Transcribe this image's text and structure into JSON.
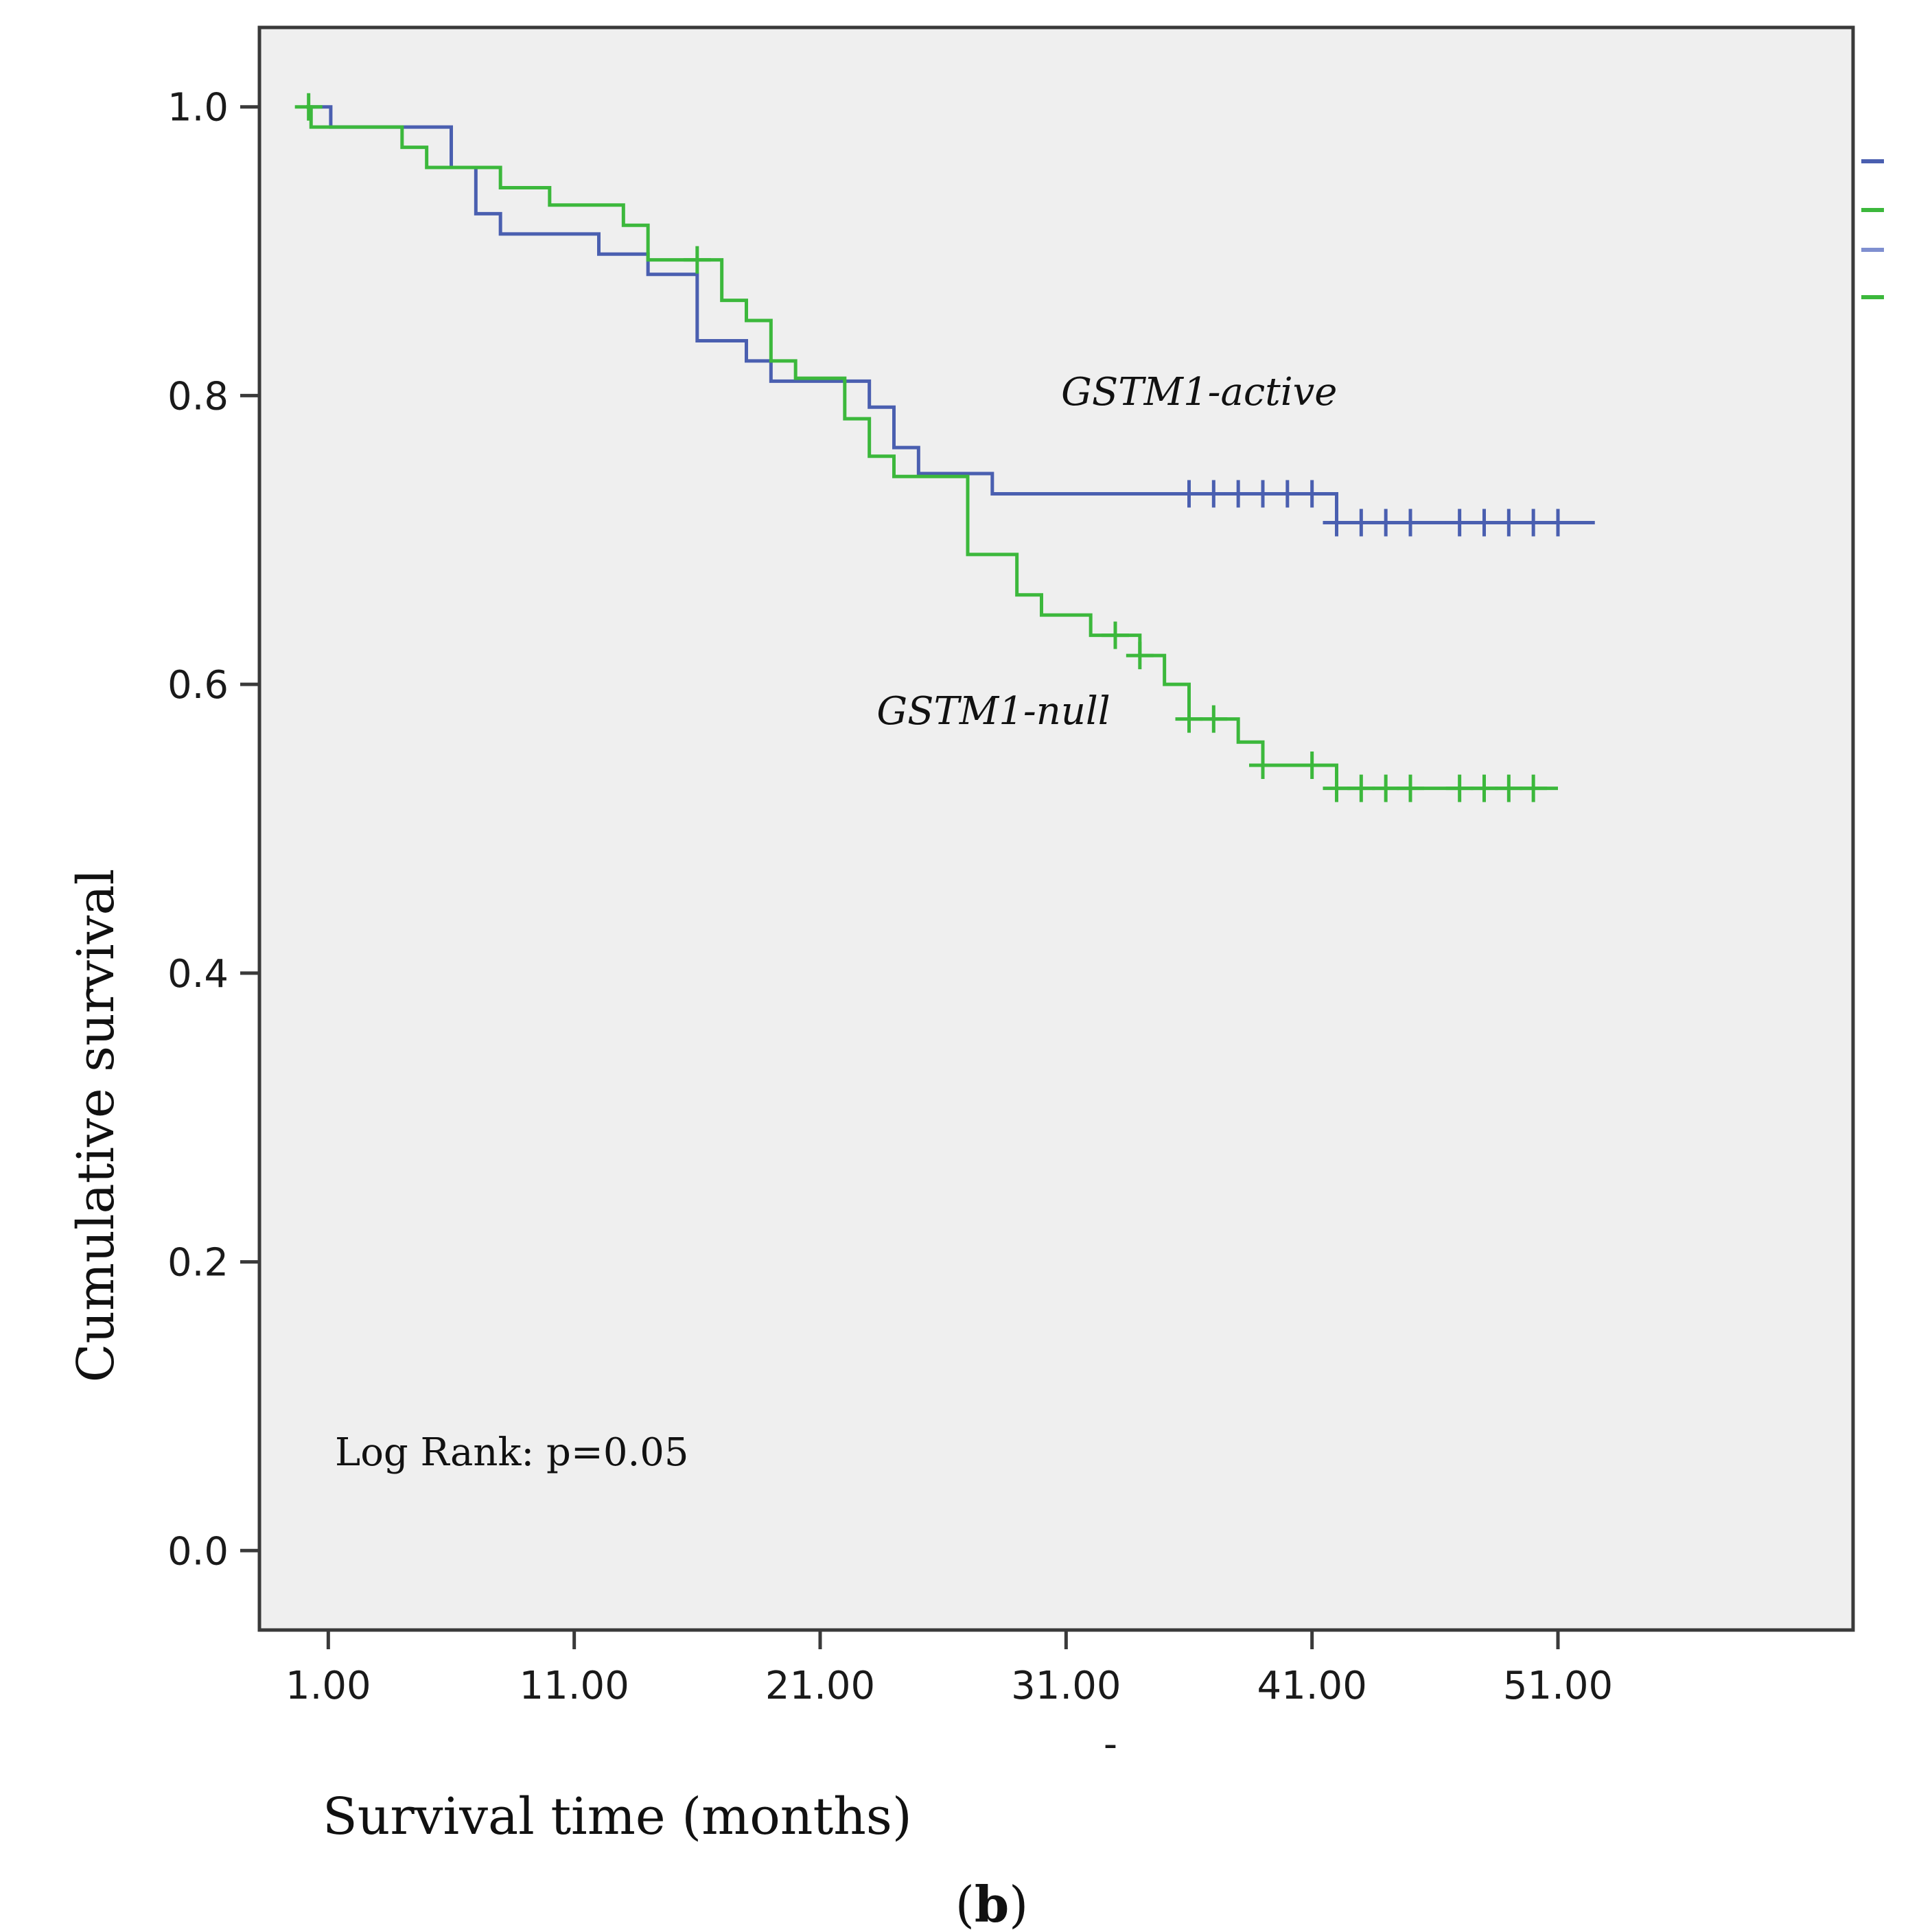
{
  "chart_data": {
    "type": "line",
    "subtype": "kaplan-meier",
    "xlabel": "Survival time (months)",
    "ylabel": "Cumulative survival",
    "xlim": [
      -1.8,
      63
    ],
    "ylim": [
      -0.055,
      1.055
    ],
    "xticks": [
      1,
      11,
      21,
      31,
      41,
      51
    ],
    "xtick_labels": [
      "1.00",
      "11.00",
      "21.00",
      "31.00",
      "41.00",
      "51.00"
    ],
    "yticks": [
      0.0,
      0.2,
      0.4,
      0.6,
      0.8,
      1.0
    ],
    "ytick_labels": [
      "0.0",
      "0.2",
      "0.4",
      "0.6",
      "0.8",
      "1.0"
    ],
    "annotation": "Log Rank: p=0.05",
    "panel_label": {
      "open": "(",
      "letter": "b",
      "close": ")"
    },
    "x_stray_mark": "-",
    "series": [
      {
        "name": "GSTM1-active",
        "color": "#4a5fb0",
        "label_at": {
          "x": 30.8,
          "y": 0.803
        },
        "steps": [
          [
            0.1,
            1.0
          ],
          [
            1.1,
            0.986
          ],
          [
            6.0,
            0.958
          ],
          [
            7.0,
            0.926
          ],
          [
            8.0,
            0.912
          ],
          [
            12.0,
            0.898
          ],
          [
            14.0,
            0.884
          ],
          [
            16.0,
            0.838
          ],
          [
            18.0,
            0.824
          ],
          [
            19.0,
            0.81
          ],
          [
            23.0,
            0.792
          ],
          [
            24.0,
            0.764
          ],
          [
            25.0,
            0.746
          ],
          [
            28.0,
            0.732
          ],
          [
            42.0,
            0.712
          ],
          [
            52.5,
            0.712
          ]
        ],
        "censored": [
          {
            "x": 36.0,
            "y": 0.732
          },
          {
            "x": 37.0,
            "y": 0.732
          },
          {
            "x": 38.0,
            "y": 0.732
          },
          {
            "x": 39.0,
            "y": 0.732
          },
          {
            "x": 40.0,
            "y": 0.732
          },
          {
            "x": 41.0,
            "y": 0.732
          },
          {
            "x": 42.0,
            "y": 0.712
          },
          {
            "x": 43.0,
            "y": 0.712
          },
          {
            "x": 44.0,
            "y": 0.712
          },
          {
            "x": 45.0,
            "y": 0.712
          },
          {
            "x": 47.0,
            "y": 0.712
          },
          {
            "x": 48.0,
            "y": 0.712
          },
          {
            "x": 49.0,
            "y": 0.712
          },
          {
            "x": 50.0,
            "y": 0.712
          },
          {
            "x": 51.0,
            "y": 0.712
          }
        ]
      },
      {
        "name": "GSTM1-null",
        "color": "#3cb83c",
        "label_at": {
          "x": 23.3,
          "y": 0.582
        },
        "steps": [
          [
            0.1,
            1.0
          ],
          [
            0.3,
            0.986
          ],
          [
            4.0,
            0.972
          ],
          [
            5.0,
            0.958
          ],
          [
            8.0,
            0.944
          ],
          [
            10.0,
            0.932
          ],
          [
            13.0,
            0.918
          ],
          [
            14.0,
            0.894
          ],
          [
            17.0,
            0.866
          ],
          [
            18.0,
            0.852
          ],
          [
            19.0,
            0.824
          ],
          [
            20.0,
            0.812
          ],
          [
            22.0,
            0.784
          ],
          [
            23.0,
            0.758
          ],
          [
            24.0,
            0.744
          ],
          [
            27.0,
            0.69
          ],
          [
            29.0,
            0.662
          ],
          [
            30.0,
            0.648
          ],
          [
            32.0,
            0.634
          ],
          [
            34.0,
            0.62
          ],
          [
            35.0,
            0.6
          ],
          [
            36.0,
            0.576
          ],
          [
            38.0,
            0.56
          ],
          [
            39.0,
            0.544
          ],
          [
            42.0,
            0.528
          ],
          [
            51.0,
            0.528
          ]
        ],
        "censored": [
          {
            "x": 0.2,
            "y": 1.0
          },
          {
            "x": 16.0,
            "y": 0.894
          },
          {
            "x": 33.0,
            "y": 0.634
          },
          {
            "x": 34.0,
            "y": 0.62
          },
          {
            "x": 36.0,
            "y": 0.576
          },
          {
            "x": 37.0,
            "y": 0.576
          },
          {
            "x": 39.0,
            "y": 0.544
          },
          {
            "x": 41.0,
            "y": 0.544
          },
          {
            "x": 42.0,
            "y": 0.528
          },
          {
            "x": 43.0,
            "y": 0.528
          },
          {
            "x": 44.0,
            "y": 0.528
          },
          {
            "x": 45.0,
            "y": 0.528
          },
          {
            "x": 47.0,
            "y": 0.528
          },
          {
            "x": 48.0,
            "y": 0.528
          },
          {
            "x": 49.0,
            "y": 0.528
          },
          {
            "x": 50.0,
            "y": 0.528
          }
        ]
      }
    ],
    "legend_marks": [
      {
        "color": "#4a5fb0"
      },
      {
        "color": "#3cb83c"
      },
      {
        "color": "#7f8fd0"
      },
      {
        "color": "#3cb83c"
      }
    ]
  }
}
